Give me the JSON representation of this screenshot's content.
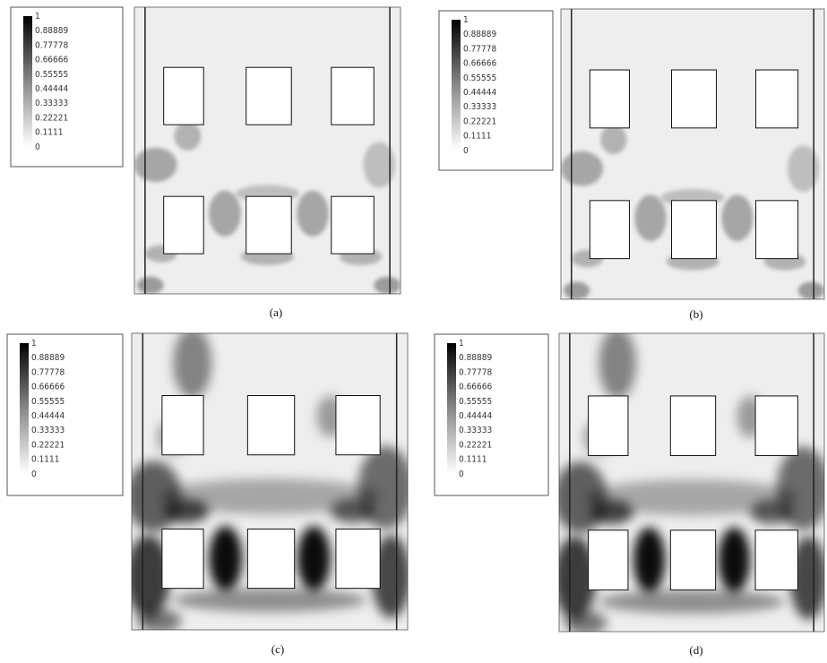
{
  "panels": [
    {
      "caption": "(a)",
      "legend": [
        "1",
        "0.88889",
        "0.77778",
        "0.66666",
        "0.55555",
        "0.44444",
        "0.33333",
        "0.22221",
        "0.1111",
        "0"
      ]
    },
    {
      "caption": "(b)",
      "legend": [
        "1",
        "0.88889",
        "0.77778",
        "0.66666",
        "0.55555",
        "0.44444",
        "0.33333",
        "0.22221",
        "0.1111",
        "0"
      ]
    },
    {
      "caption": "(c)",
      "legend": [
        "1",
        "0.88889",
        "0.77778",
        "0.66666",
        "0.55555",
        "0.44444",
        "0.33333",
        "0.22221",
        "0.1111",
        "0"
      ]
    },
    {
      "caption": "(d)",
      "legend": [
        "1",
        "0.88889",
        "0.77778",
        "0.66666",
        "0.55555",
        "0.44444",
        "0.33333",
        "0.22221",
        "0.1111",
        "0"
      ]
    }
  ]
}
